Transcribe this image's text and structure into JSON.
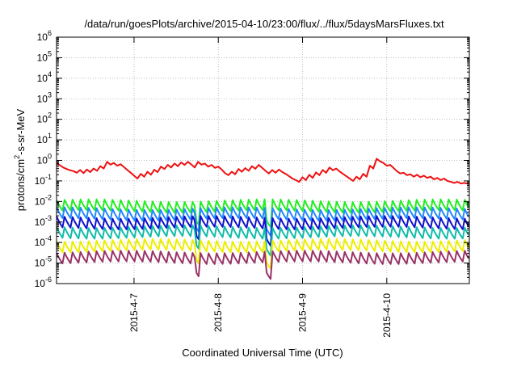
{
  "chart_data": {
    "type": "line",
    "title": "/data/run/goesPlots/archive/2015-04-10/23:00/flux/../flux/5daysMarsFluxes.txt",
    "xlabel": "Coordinated Universal Time (UTC)",
    "ylabel_parts": [
      "protons/cm",
      "2",
      "-s-sr-MeV"
    ],
    "yscale": "log",
    "ylim_exponents": [
      -6,
      6
    ],
    "y_ticks": [
      {
        "base": "10",
        "exp": "-6"
      },
      {
        "base": "10",
        "exp": "-5"
      },
      {
        "base": "10",
        "exp": "-4"
      },
      {
        "base": "10",
        "exp": "-3"
      },
      {
        "base": "10",
        "exp": "-2"
      },
      {
        "base": "10",
        "exp": "-1"
      },
      {
        "base": "10",
        "exp": "0"
      },
      {
        "base": "10",
        "exp": "1"
      },
      {
        "base": "10",
        "exp": "2"
      },
      {
        "base": "10",
        "exp": "3"
      },
      {
        "base": "10",
        "exp": "4"
      },
      {
        "base": "10",
        "exp": "5"
      },
      {
        "base": "10",
        "exp": "6"
      }
    ],
    "x_ticks": [
      "2015-4-7",
      "2015-4-8",
      "2015-4-9",
      "2015-4-10"
    ],
    "xlim_days": [
      6.08,
      10.98
    ],
    "grid": true,
    "series": [
      {
        "color": "#ee1111",
        "points": [
          [
            6.08,
            0.75
          ],
          [
            6.16,
            0.45
          ],
          [
            6.2,
            0.38
          ],
          [
            6.24,
            0.33
          ],
          [
            6.28,
            0.3
          ],
          [
            6.32,
            0.25
          ],
          [
            6.36,
            0.34
          ],
          [
            6.4,
            0.24
          ],
          [
            6.44,
            0.36
          ],
          [
            6.48,
            0.27
          ],
          [
            6.52,
            0.4
          ],
          [
            6.56,
            0.31
          ],
          [
            6.6,
            0.52
          ],
          [
            6.64,
            0.4
          ],
          [
            6.68,
            0.85
          ],
          [
            6.72,
            0.62
          ],
          [
            6.76,
            0.75
          ],
          [
            6.8,
            0.55
          ],
          [
            6.84,
            0.65
          ],
          [
            6.88,
            0.47
          ],
          [
            6.92,
            0.34
          ],
          [
            6.96,
            0.25
          ],
          [
            7.0,
            0.18
          ],
          [
            7.04,
            0.13
          ],
          [
            7.08,
            0.22
          ],
          [
            7.12,
            0.16
          ],
          [
            7.16,
            0.28
          ],
          [
            7.2,
            0.2
          ],
          [
            7.24,
            0.35
          ],
          [
            7.28,
            0.27
          ],
          [
            7.32,
            0.5
          ],
          [
            7.36,
            0.38
          ],
          [
            7.4,
            0.6
          ],
          [
            7.44,
            0.45
          ],
          [
            7.48,
            0.7
          ],
          [
            7.52,
            0.52
          ],
          [
            7.56,
            0.8
          ],
          [
            7.6,
            0.6
          ],
          [
            7.64,
            0.85
          ],
          [
            7.68,
            0.63
          ],
          [
            7.72,
            0.45
          ],
          [
            7.76,
            0.85
          ],
          [
            7.8,
            0.62
          ],
          [
            7.84,
            0.7
          ],
          [
            7.88,
            0.5
          ],
          [
            7.92,
            0.6
          ],
          [
            7.96,
            0.43
          ],
          [
            8.0,
            0.5
          ],
          [
            8.04,
            0.36
          ],
          [
            8.08,
            0.24
          ],
          [
            8.12,
            0.19
          ],
          [
            8.16,
            0.28
          ],
          [
            8.2,
            0.21
          ],
          [
            8.24,
            0.38
          ],
          [
            8.28,
            0.28
          ],
          [
            8.32,
            0.42
          ],
          [
            8.36,
            0.31
          ],
          [
            8.4,
            0.52
          ],
          [
            8.44,
            0.39
          ],
          [
            8.48,
            0.6
          ],
          [
            8.52,
            0.43
          ],
          [
            8.56,
            0.31
          ],
          [
            8.6,
            0.23
          ],
          [
            8.64,
            0.34
          ],
          [
            8.68,
            0.25
          ],
          [
            8.72,
            0.36
          ],
          [
            8.76,
            0.27
          ],
          [
            8.8,
            0.22
          ],
          [
            8.84,
            0.17
          ],
          [
            8.88,
            0.13
          ],
          [
            8.92,
            0.11
          ],
          [
            8.96,
            0.09
          ],
          [
            9.0,
            0.15
          ],
          [
            9.04,
            0.11
          ],
          [
            9.08,
            0.2
          ],
          [
            9.12,
            0.14
          ],
          [
            9.16,
            0.26
          ],
          [
            9.2,
            0.19
          ],
          [
            9.24,
            0.34
          ],
          [
            9.28,
            0.25
          ],
          [
            9.32,
            0.45
          ],
          [
            9.36,
            0.33
          ],
          [
            9.4,
            0.4
          ],
          [
            9.44,
            0.29
          ],
          [
            9.48,
            0.22
          ],
          [
            9.52,
            0.17
          ],
          [
            9.56,
            0.13
          ],
          [
            9.6,
            0.1
          ],
          [
            9.64,
            0.16
          ],
          [
            9.68,
            0.12
          ],
          [
            9.72,
            0.22
          ],
          [
            9.76,
            0.16
          ],
          [
            9.8,
            0.55
          ],
          [
            9.84,
            0.4
          ],
          [
            9.88,
            1.2
          ],
          [
            9.92,
            0.9
          ],
          [
            9.96,
            0.75
          ],
          [
            10.0,
            0.55
          ],
          [
            10.04,
            0.6
          ],
          [
            10.08,
            0.43
          ],
          [
            10.12,
            0.3
          ],
          [
            10.16,
            0.23
          ],
          [
            10.2,
            0.25
          ],
          [
            10.24,
            0.19
          ],
          [
            10.28,
            0.21
          ],
          [
            10.32,
            0.16
          ],
          [
            10.36,
            0.2
          ],
          [
            10.4,
            0.15
          ],
          [
            10.44,
            0.18
          ],
          [
            10.48,
            0.14
          ],
          [
            10.52,
            0.16
          ],
          [
            10.56,
            0.12
          ],
          [
            10.6,
            0.14
          ],
          [
            10.64,
            0.11
          ],
          [
            10.68,
            0.13
          ],
          [
            10.72,
            0.1
          ],
          [
            10.76,
            0.09
          ],
          [
            10.8,
            0.08
          ],
          [
            10.84,
            0.09
          ],
          [
            10.88,
            0.075
          ],
          [
            10.92,
            0.08
          ],
          [
            10.98,
            0.07
          ]
        ]
      },
      {
        "color": "#22ee22",
        "base": 0.011,
        "amp": 1.8,
        "period": 0.095,
        "phase": 0.0
      },
      {
        "color": "#2288ff",
        "base": 0.0045,
        "amp": 1.9,
        "period": 0.095,
        "phase": 0.01
      },
      {
        "color": "#1111cc",
        "base": 0.0017,
        "amp": 2.0,
        "period": 0.095,
        "phase": 0.02
      },
      {
        "color": "#11bbaa",
        "base": 0.0006,
        "amp": 2.2,
        "period": 0.095,
        "phase": 0.03
      },
      {
        "color": "#eeee00",
        "base": 0.00013,
        "amp": 2.6,
        "period": 0.095,
        "phase": 0.04
      },
      {
        "color": "#993366",
        "base": 3.5e-05,
        "amp": 2.8,
        "period": 0.095,
        "phase": 0.05
      }
    ],
    "dips": [
      [
        7.75,
        0.25
      ],
      [
        8.6,
        0.15
      ]
    ]
  }
}
